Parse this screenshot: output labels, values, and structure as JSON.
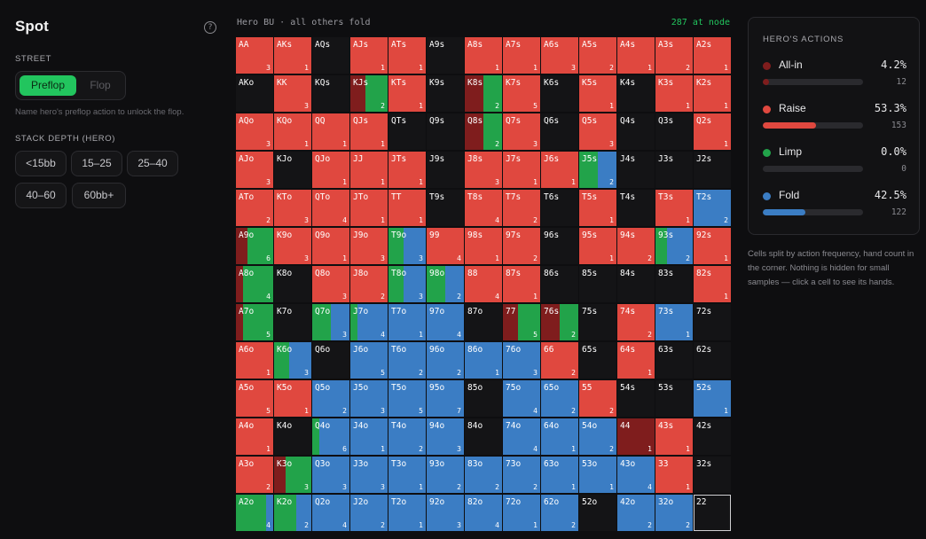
{
  "sidebar": {
    "title": "Spot",
    "street_label": "STREET",
    "street_options": [
      "Preflop",
      "Flop"
    ],
    "hint": "Name hero's preflop action to unlock the flop.",
    "stack_label": "STACK DEPTH (HERO)",
    "stack_options": [
      "<15bb",
      "15–25",
      "25–40",
      "40–60",
      "60bb+"
    ]
  },
  "header": {
    "scenario": "Hero BU · all others fold",
    "node_count": "287 at node"
  },
  "colors": {
    "allin": "#7f1d1d",
    "raise": "#e0483f",
    "limp": "#22a34a",
    "fold": "#3b7dc4",
    "empty": "#141416"
  },
  "grid_rows": [
    "AA 3 R|AKs 1 R|AQs . N|AJs 1 R|ATs 1 R|A9s . N|A8s 1 R|A7s 1 R|A6s 3 R|A5s 2 R|A4s 1 R|A3s 2 R|A2s 1 R",
    "AKo . N|KK 3 R|KQs . N|KJs 2 40,0,60|KTs 1 R|K9s . N|K8s 2 50,0,50|K7s 5 R|K6s . N|K5s 1 R|K4s . N|K3s 1 R|K2s 1 R",
    "AQo 3 R|KQo 1 R|QQ 1 R|QJs 1 R|QTs . N|Q9s . N|Q8s 2 50,0,50|Q7s 3 R|Q6s . N|Q5s 3 R|Q4s . N|Q3s . N|Q2s 1 R",
    "AJo 3 R|KJo . N|QJo 1 R|JJ 1 R|JTs 1 R|J9s . N|J8s 3 R|J7s 1 R|J6s 1 R|J5s 2 0,0,50,50|J4s . N|J3s . N|J2s . N",
    "ATo 2 R|KTo 3 R|QTo 4 R|JTo 1 R|TT 1 R|T9s . N|T8s 4 R|T7s 2 R|T6s . N|T5s 1 R|T4s . N|T3s 1 R|T2s 2 F",
    "A9o 6 30,0,70|K9o 3 R|Q9o 1 R|J9o 3 R|T9o 3 0,0,40,60|99 4 R|98s 1 R|97s 2 R|96s . N|95s 1 R|94s 2 R|93s 2 0,0,30,70|92s 1 R",
    "A8o 4 20,0,80|K8o . N|Q8o 3 R|J8o 2 R|T8o 3 0,0,40,60|98o 2 0,0,50,50|88 4 R|87s 1 R|86s . N|85s . N|84s . N|83s . N|82s 1 R",
    "A7o 5 20,0,80|K7o . N|Q7o 3 0,0,50,50|J7o 4 0,0,20,80|T7o 1 F|97o 4 F|87o . N|77 5 40,0,60|76s 2 50,0,50|75s . N|74s 2 R|73s 1 F|72s . N",
    "A6o 1 R|K6o 3 0,0,40,60|Q6o . N|J6o 5 F|T6o 2 F|96o 2 F|86o 1 F|76o 3 F|66 2 R|65s . N|64s 1 R|63s . N|62s . N",
    "A5o 5 R|K5o 1 R|Q5o 2 F|J5o 3 F|T5o 5 F|95o 7 F|85o . N|75o 4 F|65o 2 F|55 2 R|54s . N|53s . N|52s 1 F",
    "A4o 1 R|K4o . N|Q4o 6 0,0,20,80|J4o 1 F|T4o 2 F|94o 3 F|84o . N|74o 4 F|64o 1 F|54o 2 F|44 1 100,0,0|43s 1 R|42s . N",
    "A3o 2 R|K3o 3 30,0,70|Q3o 3 F|J3o 3 F|T3o 1 F|93o 2 F|83o 2 F|73o 2 F|63o 1 F|53o 1 F|43o 4 F|33 1 R|32s . N",
    "A2o 4 0,0,80,20|K2o 2 0,0,60,40|Q2o 4 F|J2o 2 F|T2o 1 F|92o 3 F|82o 4 F|72o 1 F|62o 2 F|52o . N|42o 2 F|32o 2 F|22 . O"
  ],
  "actions_panel": {
    "title": "HERO'S ACTIONS",
    "items": [
      {
        "name": "All-in",
        "pct": "4.2%",
        "value": 4.2,
        "count": "12",
        "color": "#7f1d1d"
      },
      {
        "name": "Raise",
        "pct": "53.3%",
        "value": 53.3,
        "count": "153",
        "color": "#e0483f"
      },
      {
        "name": "Limp",
        "pct": "0.0%",
        "value": 0.0,
        "count": "0",
        "color": "#22a34a"
      },
      {
        "name": "Fold",
        "pct": "42.5%",
        "value": 42.5,
        "count": "122",
        "color": "#3b7dc4"
      }
    ]
  },
  "footnote": "Cells split by action frequency, hand count in the corner. Nothing is hidden for small samples — click a cell to see its hands."
}
